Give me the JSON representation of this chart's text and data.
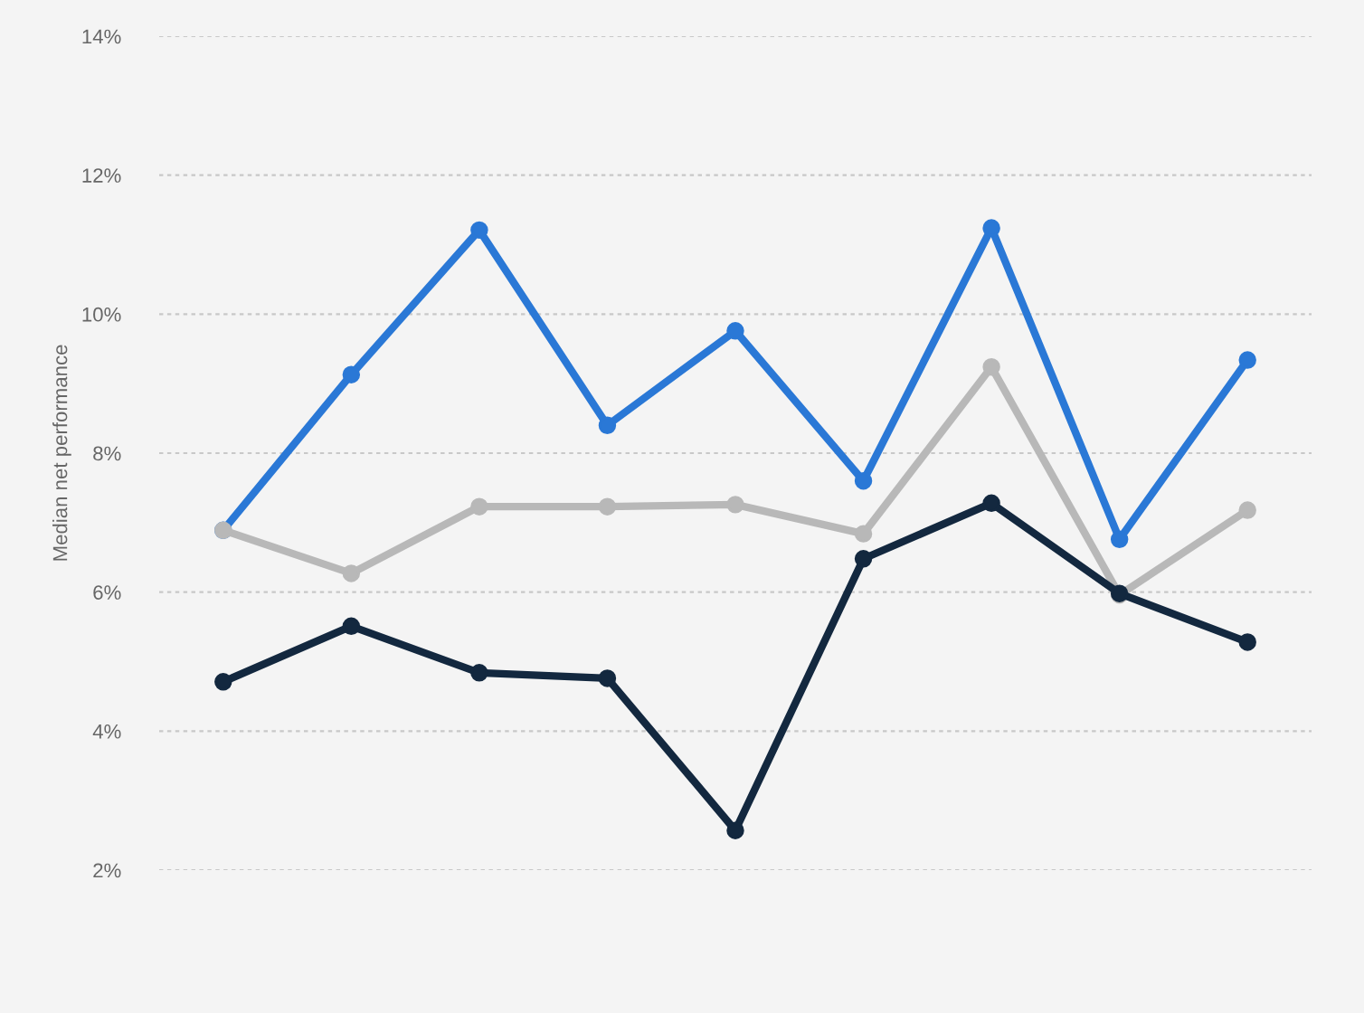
{
  "chart_data": {
    "type": "line",
    "ylabel": "Median net performance",
    "categories": [
      null,
      null,
      null,
      null,
      null,
      null,
      null,
      null,
      null
    ],
    "series": [
      {
        "color": "#2a78d6",
        "values": [
          6.89,
          9.13,
          11.21,
          8.4,
          9.76,
          7.6,
          11.24,
          6.76,
          9.34
        ]
      },
      {
        "color": "#b8b8b8",
        "values": [
          6.89,
          6.27,
          7.23,
          7.23,
          7.26,
          6.84,
          9.24,
          5.96,
          7.18
        ]
      },
      {
        "color": "#13283f",
        "values": [
          4.71,
          5.51,
          4.84,
          4.76,
          2.57,
          6.48,
          7.28,
          5.98,
          5.28
        ]
      }
    ],
    "ylim": [
      2,
      14
    ],
    "yticks": [
      {
        "value": 2,
        "label": "2%"
      },
      {
        "value": 4,
        "label": "4%"
      },
      {
        "value": 6,
        "label": "6%"
      },
      {
        "value": 8,
        "label": "8%"
      },
      {
        "value": 10,
        "label": "10%"
      },
      {
        "value": 12,
        "label": "12%"
      },
      {
        "value": 14,
        "label": "14%"
      }
    ],
    "grid": "y",
    "marker": "circle",
    "line_style": "solid"
  }
}
